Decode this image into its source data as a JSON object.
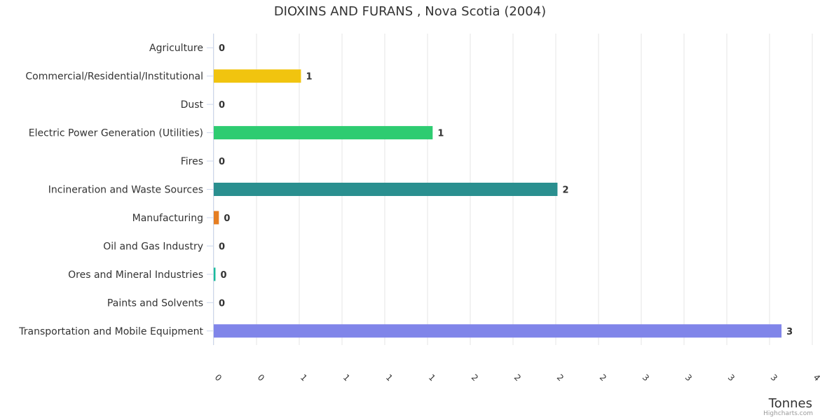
{
  "chart_data": {
    "type": "bar",
    "orientation": "horizontal",
    "title": "DIOXINS AND FURANS , Nova Scotia (2004)",
    "xlabel": "Tonnes",
    "categories": [
      "Agriculture",
      "Commercial/Residential/Institutional",
      "Dust",
      "Electric Power Generation (Utilities)",
      "Fires",
      "Incineration and Waste Sources",
      "Manufacturing",
      "Oil and Gas Industry",
      "Ores and Mineral Industries",
      "Paints and Solvents",
      "Transportation and Mobile Equipment"
    ],
    "values": [
      0,
      0.51,
      0,
      1.28,
      0,
      2.01,
      0.03,
      0,
      0.01,
      0,
      3.32
    ],
    "data_labels": [
      "0",
      "1",
      "0",
      "1",
      "0",
      "2",
      "0",
      "0",
      "0",
      "0",
      "3"
    ],
    "colors": [
      "#7cb5ec",
      "#f1c40f",
      "#2c3e50",
      "#2ecc71",
      "#e74c3c",
      "#2a8f8f",
      "#e67e22",
      "#8e44ad",
      "#1abc9c",
      "#34495e",
      "#8085e9"
    ],
    "xlim": [
      0,
      3.5
    ],
    "x_ticks": [
      0,
      0.25,
      0.5,
      0.75,
      1,
      1.25,
      1.5,
      1.75,
      2,
      2.25,
      2.5,
      2.75,
      3,
      3.25,
      3.5
    ],
    "x_tick_labels": [
      "0",
      "0",
      "1",
      "1",
      "1",
      "1",
      "2",
      "2",
      "2",
      "2",
      "3",
      "3",
      "3",
      "3",
      "4"
    ],
    "grid": true,
    "legend": "none"
  },
  "credits": "Highcharts.com"
}
